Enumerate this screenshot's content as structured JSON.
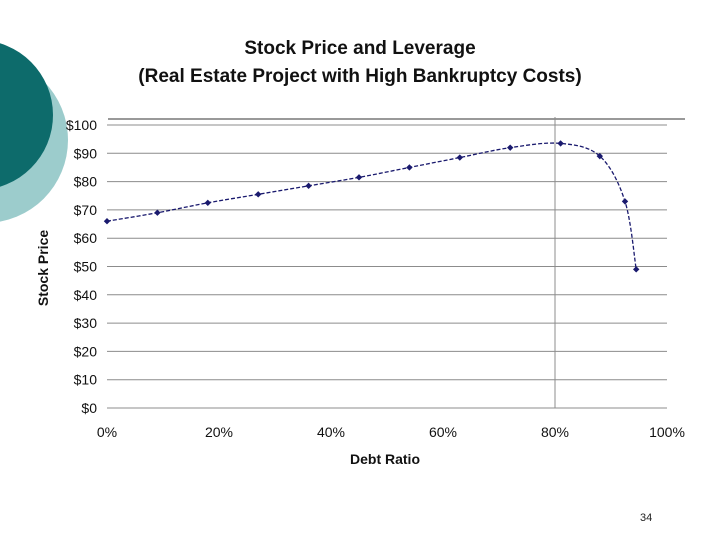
{
  "slide": {
    "page_number": "34",
    "colors": {
      "teal_dark": "#0d6b6b",
      "teal_light": "#9ccccc",
      "series": "#1a1a6e",
      "grid": "#8c8c8c"
    }
  },
  "chart_data": {
    "type": "line",
    "title": "Stock Price and Leverage",
    "subtitle": "(Real Estate Project with High Bankruptcy Costs)",
    "xlabel": "Debt Ratio",
    "ylabel": "Stock Price",
    "xlim": [
      0,
      100
    ],
    "ylim": [
      0,
      100
    ],
    "x_ticks": [
      "0%",
      "20%",
      "40%",
      "60%",
      "80%",
      "100%"
    ],
    "x_tick_values": [
      0,
      20,
      40,
      60,
      80,
      100
    ],
    "y_ticks": [
      "$0",
      "$10",
      "$20",
      "$30",
      "$40",
      "$50",
      "$60",
      "$70",
      "$80",
      "$90",
      "$100"
    ],
    "y_tick_values": [
      0,
      10,
      20,
      30,
      40,
      50,
      60,
      70,
      80,
      90,
      100
    ],
    "grid": "horizontal",
    "vertical_marker_x": 80,
    "series": [
      {
        "name": "Stock Price",
        "x": [
          0,
          9,
          18,
          27,
          36,
          45,
          54,
          63,
          72,
          81,
          88,
          92.5,
          94.5
        ],
        "y": [
          66,
          69,
          72.5,
          75.5,
          78.5,
          81.5,
          85,
          88.5,
          92,
          93.5,
          89,
          73,
          49
        ]
      }
    ]
  }
}
